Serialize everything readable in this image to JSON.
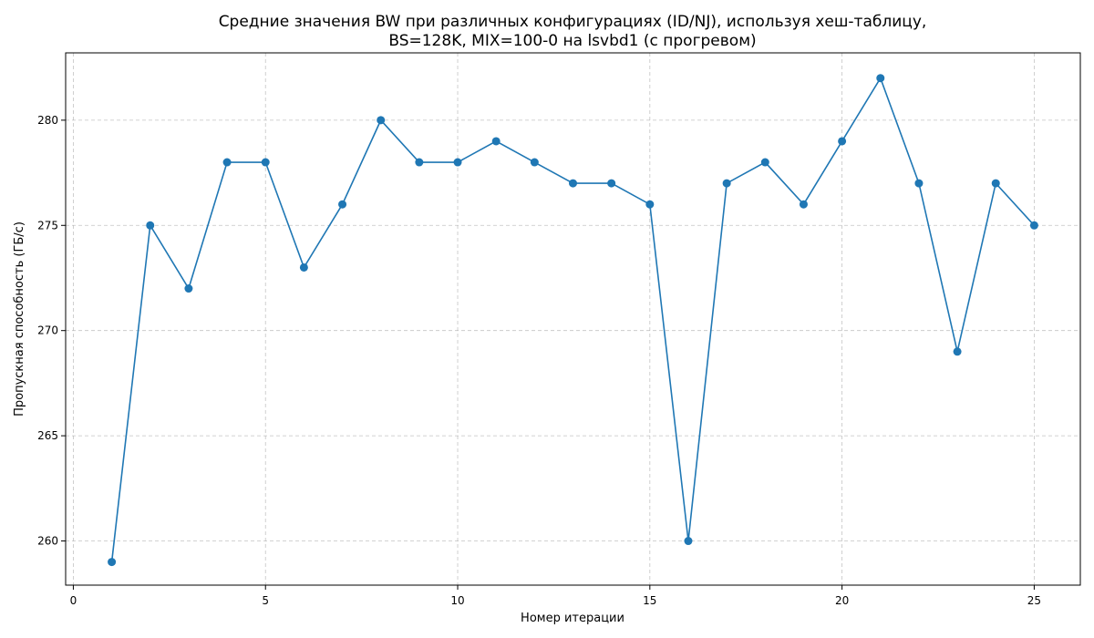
{
  "chart_data": {
    "type": "line",
    "title_line1": "Средние значения BW при различных конфигурациях (ID/NJ), используя хеш-таблицу,",
    "title_line2": "BS=128K, MIX=100-0 на lsvbd1 (с прогревом)",
    "xlabel": "Номер итерации",
    "ylabel": "Пропускная способность (ГБ/с)",
    "xlim": [
      -0.2,
      26.2
    ],
    "ylim": [
      257.9,
      283.2
    ],
    "xticks": [
      0,
      5,
      10,
      15,
      20,
      25
    ],
    "yticks": [
      260,
      265,
      270,
      275,
      280
    ],
    "grid": true,
    "series": [
      {
        "name": "BW",
        "color": "#1f77b4",
        "x": [
          1,
          2,
          3,
          4,
          5,
          6,
          7,
          8,
          9,
          10,
          11,
          12,
          13,
          14,
          15,
          16,
          17,
          18,
          19,
          20,
          21,
          22,
          23,
          24,
          25
        ],
        "values": [
          259,
          275,
          272,
          278,
          278,
          273,
          276,
          280,
          278,
          278,
          279,
          278,
          277,
          277,
          276,
          260,
          277,
          278,
          276,
          279,
          282,
          277,
          269,
          277,
          275
        ]
      }
    ]
  }
}
